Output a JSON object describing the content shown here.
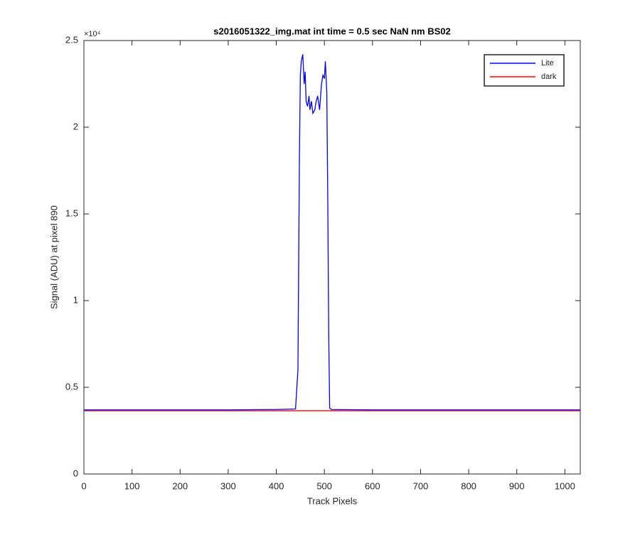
{
  "chart_data": {
    "type": "line",
    "title": "s2016051322_img.mat int time = 0.5 sec  NaN nm BS02",
    "xlabel": "Track Pixels",
    "ylabel": "Signal (ADU) at pixel 890",
    "y_exponent_label": "×10⁴",
    "xlim": [
      0,
      1032
    ],
    "ylim": [
      0,
      2.5
    ],
    "xticks": [
      0,
      100,
      200,
      300,
      400,
      500,
      600,
      700,
      800,
      900,
      1000
    ],
    "yticks": [
      0,
      0.5,
      1,
      1.5,
      2,
      2.5
    ],
    "grid": false,
    "legend": "top-right",
    "x": [
      0,
      100,
      200,
      300,
      400,
      440,
      445,
      448,
      450,
      452,
      455,
      458,
      460,
      462,
      465,
      468,
      470,
      473,
      476,
      480,
      483,
      486,
      490,
      494,
      497,
      500,
      502,
      505,
      507,
      509,
      511,
      515,
      600,
      700,
      800,
      900,
      1000,
      1032
    ],
    "series": [
      {
        "name": "Lite",
        "color": "#0000ff",
        "values": [
          0.37,
          0.37,
          0.37,
          0.37,
          0.372,
          0.375,
          0.6,
          1.8,
          2.3,
          2.38,
          2.42,
          2.25,
          2.32,
          2.15,
          2.12,
          2.18,
          2.1,
          2.15,
          2.08,
          2.1,
          2.15,
          2.18,
          2.1,
          2.25,
          2.3,
          2.28,
          2.38,
          2.2,
          1.6,
          0.8,
          0.38,
          0.372,
          0.37,
          0.37,
          0.37,
          0.37,
          0.37,
          0.37
        ]
      },
      {
        "name": "dark",
        "color": "#ff0000",
        "values": [
          0.365,
          0.365,
          0.365,
          0.365,
          0.365,
          0.365,
          0.365,
          0.365,
          0.365,
          0.365,
          0.365,
          0.365,
          0.365,
          0.365,
          0.365,
          0.365,
          0.365,
          0.365,
          0.365,
          0.365,
          0.365,
          0.365,
          0.365,
          0.365,
          0.365,
          0.365,
          0.365,
          0.365,
          0.365,
          0.365,
          0.365,
          0.365,
          0.365,
          0.365,
          0.365,
          0.365,
          0.365,
          0.365
        ]
      }
    ]
  }
}
